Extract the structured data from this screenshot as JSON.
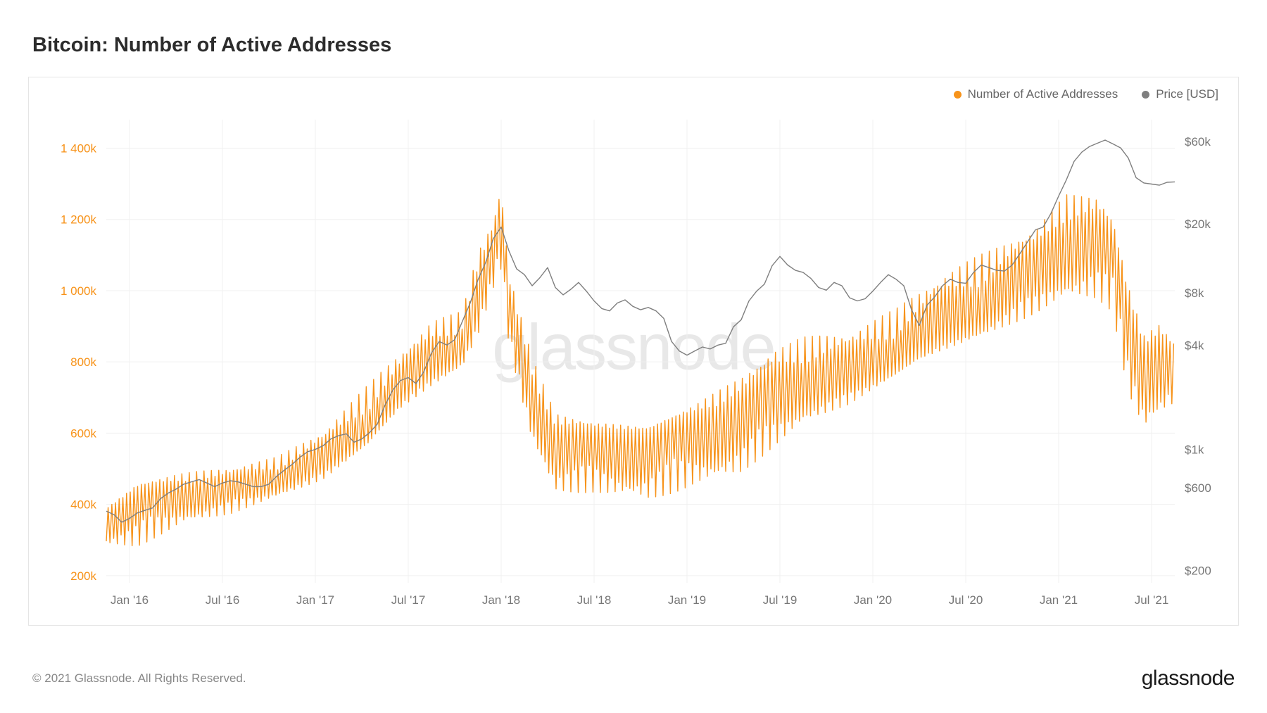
{
  "title": "Bitcoin: Number of Active Addresses",
  "copyright": "© 2021 Glassnode. All Rights Reserved.",
  "brand": "glassnode",
  "watermark": "glassnode",
  "legend": {
    "series1": {
      "label": "Number of Active Addresses",
      "color": "#f7931a"
    },
    "series2": {
      "label": "Price [USD]",
      "color": "#7f7f7f"
    }
  },
  "chart": {
    "type": "dual-axis-line",
    "background_color": "#ffffff",
    "border_color": "#e5e5e5",
    "grid_color": "#f0f0f0",
    "font_size_axis": 17,
    "x_axis": {
      "range": [
        0,
        138
      ],
      "ticks": [
        {
          "pos": 3,
          "label": "Jan '16"
        },
        {
          "pos": 15,
          "label": "Jul '16"
        },
        {
          "pos": 27,
          "label": "Jan '17"
        },
        {
          "pos": 39,
          "label": "Jul '17"
        },
        {
          "pos": 51,
          "label": "Jan '18"
        },
        {
          "pos": 63,
          "label": "Jul '18"
        },
        {
          "pos": 75,
          "label": "Jan '19"
        },
        {
          "pos": 87,
          "label": "Jul '19"
        },
        {
          "pos": 99,
          "label": "Jan '20"
        },
        {
          "pos": 111,
          "label": "Jul '20"
        },
        {
          "pos": 123,
          "label": "Jan '21"
        },
        {
          "pos": 135,
          "label": "Jul '21"
        }
      ]
    },
    "y_left": {
      "scale": "linear",
      "range": [
        180,
        1480
      ],
      "color": "#f7931a",
      "ticks": [
        {
          "val": 200,
          "label": "200k"
        },
        {
          "val": 400,
          "label": "400k"
        },
        {
          "val": 600,
          "label": "600k"
        },
        {
          "val": 800,
          "label": "800k"
        },
        {
          "val": 1000,
          "label": "1 000k"
        },
        {
          "val": 1200,
          "label": "1 200k"
        },
        {
          "val": 1400,
          "label": "1 400k"
        }
      ]
    },
    "y_right": {
      "scale": "log",
      "range": [
        170,
        80000
      ],
      "color": "#7f7f7f",
      "ticks": [
        {
          "val": 200,
          "label": "$200"
        },
        {
          "val": 600,
          "label": "$600"
        },
        {
          "val": 1000,
          "label": "$1k"
        },
        {
          "val": 4000,
          "label": "$4k"
        },
        {
          "val": 8000,
          "label": "$8k"
        },
        {
          "val": 20000,
          "label": "$20k"
        },
        {
          "val": 60000,
          "label": "$60k"
        }
      ]
    },
    "series_addresses": {
      "color": "#f7931a",
      "line_width": 1.4,
      "baseline": [
        [
          0,
          360
        ],
        [
          4,
          400
        ],
        [
          10,
          430
        ],
        [
          16,
          440
        ],
        [
          22,
          470
        ],
        [
          28,
          520
        ],
        [
          34,
          620
        ],
        [
          38,
          720
        ],
        [
          42,
          800
        ],
        [
          46,
          850
        ],
        [
          48,
          980
        ],
        [
          50,
          1100
        ],
        [
          51,
          1180
        ],
        [
          52,
          950
        ],
        [
          55,
          700
        ],
        [
          58,
          560
        ],
        [
          63,
          560
        ],
        [
          70,
          560
        ],
        [
          76,
          600
        ],
        [
          82,
          640
        ],
        [
          86,
          700
        ],
        [
          90,
          740
        ],
        [
          96,
          760
        ],
        [
          102,
          820
        ],
        [
          108,
          900
        ],
        [
          114,
          970
        ],
        [
          120,
          1050
        ],
        [
          124,
          1130
        ],
        [
          128,
          1140
        ],
        [
          130,
          1100
        ],
        [
          132,
          900
        ],
        [
          134,
          780
        ],
        [
          136,
          820
        ],
        [
          138,
          800
        ]
      ],
      "osc_amp": [
        [
          0,
          80
        ],
        [
          4,
          120
        ],
        [
          10,
          90
        ],
        [
          16,
          80
        ],
        [
          22,
          70
        ],
        [
          28,
          90
        ],
        [
          34,
          120
        ],
        [
          38,
          110
        ],
        [
          42,
          120
        ],
        [
          46,
          100
        ],
        [
          48,
          150
        ],
        [
          50,
          120
        ],
        [
          51,
          150
        ],
        [
          52,
          130
        ],
        [
          55,
          150
        ],
        [
          58,
          140
        ],
        [
          63,
          130
        ],
        [
          70,
          150
        ],
        [
          76,
          150
        ],
        [
          82,
          170
        ],
        [
          86,
          170
        ],
        [
          90,
          150
        ],
        [
          96,
          130
        ],
        [
          102,
          130
        ],
        [
          108,
          150
        ],
        [
          114,
          150
        ],
        [
          120,
          150
        ],
        [
          124,
          180
        ],
        [
          128,
          180
        ],
        [
          130,
          170
        ],
        [
          132,
          200
        ],
        [
          134,
          180
        ],
        [
          136,
          180
        ],
        [
          138,
          120
        ]
      ],
      "osc_per_unit": 2.1
    },
    "series_price": {
      "color": "#7f7f7f",
      "line_width": 1.4,
      "points": [
        [
          0,
          440
        ],
        [
          1,
          420
        ],
        [
          2,
          380
        ],
        [
          3,
          400
        ],
        [
          4,
          430
        ],
        [
          5,
          445
        ],
        [
          6,
          460
        ],
        [
          7,
          520
        ],
        [
          8,
          560
        ],
        [
          9,
          590
        ],
        [
          10,
          630
        ],
        [
          11,
          650
        ],
        [
          12,
          670
        ],
        [
          13,
          640
        ],
        [
          14,
          610
        ],
        [
          15,
          640
        ],
        [
          16,
          660
        ],
        [
          17,
          650
        ],
        [
          18,
          630
        ],
        [
          19,
          610
        ],
        [
          20,
          610
        ],
        [
          21,
          630
        ],
        [
          22,
          700
        ],
        [
          23,
          760
        ],
        [
          24,
          820
        ],
        [
          25,
          900
        ],
        [
          26,
          970
        ],
        [
          27,
          1000
        ],
        [
          28,
          1050
        ],
        [
          29,
          1150
        ],
        [
          30,
          1200
        ],
        [
          31,
          1230
        ],
        [
          32,
          1100
        ],
        [
          33,
          1150
        ],
        [
          34,
          1250
        ],
        [
          35,
          1400
        ],
        [
          36,
          1800
        ],
        [
          37,
          2200
        ],
        [
          38,
          2500
        ],
        [
          39,
          2600
        ],
        [
          40,
          2400
        ],
        [
          41,
          2800
        ],
        [
          42,
          3600
        ],
        [
          43,
          4200
        ],
        [
          44,
          4000
        ],
        [
          45,
          4300
        ],
        [
          46,
          5500
        ],
        [
          47,
          7000
        ],
        [
          48,
          9500
        ],
        [
          49,
          12000
        ],
        [
          50,
          16500
        ],
        [
          51,
          19200
        ],
        [
          52,
          14000
        ],
        [
          53,
          11000
        ],
        [
          54,
          10200
        ],
        [
          55,
          8800
        ],
        [
          56,
          9800
        ],
        [
          57,
          11200
        ],
        [
          58,
          8600
        ],
        [
          59,
          7800
        ],
        [
          60,
          8400
        ],
        [
          61,
          9200
        ],
        [
          62,
          8200
        ],
        [
          63,
          7200
        ],
        [
          64,
          6500
        ],
        [
          65,
          6300
        ],
        [
          66,
          7000
        ],
        [
          67,
          7300
        ],
        [
          68,
          6700
        ],
        [
          69,
          6400
        ],
        [
          70,
          6600
        ],
        [
          71,
          6300
        ],
        [
          72,
          5700
        ],
        [
          73,
          4200
        ],
        [
          74,
          3700
        ],
        [
          75,
          3500
        ],
        [
          76,
          3700
        ],
        [
          77,
          3900
        ],
        [
          78,
          3800
        ],
        [
          79,
          4000
        ],
        [
          80,
          4100
        ],
        [
          81,
          5100
        ],
        [
          82,
          5600
        ],
        [
          83,
          7200
        ],
        [
          84,
          8200
        ],
        [
          85,
          9000
        ],
        [
          86,
          11500
        ],
        [
          87,
          13000
        ],
        [
          88,
          11600
        ],
        [
          89,
          10800
        ],
        [
          90,
          10500
        ],
        [
          91,
          9700
        ],
        [
          92,
          8600
        ],
        [
          93,
          8300
        ],
        [
          94,
          9200
        ],
        [
          95,
          8800
        ],
        [
          96,
          7500
        ],
        [
          97,
          7200
        ],
        [
          98,
          7400
        ],
        [
          99,
          8200
        ],
        [
          100,
          9200
        ],
        [
          101,
          10200
        ],
        [
          102,
          9600
        ],
        [
          103,
          8800
        ],
        [
          104,
          6400
        ],
        [
          105,
          5200
        ],
        [
          106,
          6800
        ],
        [
          107,
          7600
        ],
        [
          108,
          8800
        ],
        [
          109,
          9600
        ],
        [
          110,
          9200
        ],
        [
          111,
          9100
        ],
        [
          112,
          10500
        ],
        [
          113,
          11600
        ],
        [
          114,
          11200
        ],
        [
          115,
          10800
        ],
        [
          116,
          10700
        ],
        [
          117,
          11600
        ],
        [
          118,
          13500
        ],
        [
          119,
          15800
        ],
        [
          120,
          18500
        ],
        [
          121,
          19200
        ],
        [
          122,
          23000
        ],
        [
          123,
          29000
        ],
        [
          124,
          36000
        ],
        [
          125,
          46000
        ],
        [
          126,
          52000
        ],
        [
          127,
          56000
        ],
        [
          128,
          58500
        ],
        [
          129,
          61000
        ],
        [
          130,
          58000
        ],
        [
          131,
          55000
        ],
        [
          132,
          48000
        ],
        [
          133,
          37000
        ],
        [
          134,
          34500
        ],
        [
          135,
          34000
        ],
        [
          136,
          33500
        ],
        [
          137,
          34800
        ],
        [
          138,
          35000
        ]
      ]
    }
  }
}
